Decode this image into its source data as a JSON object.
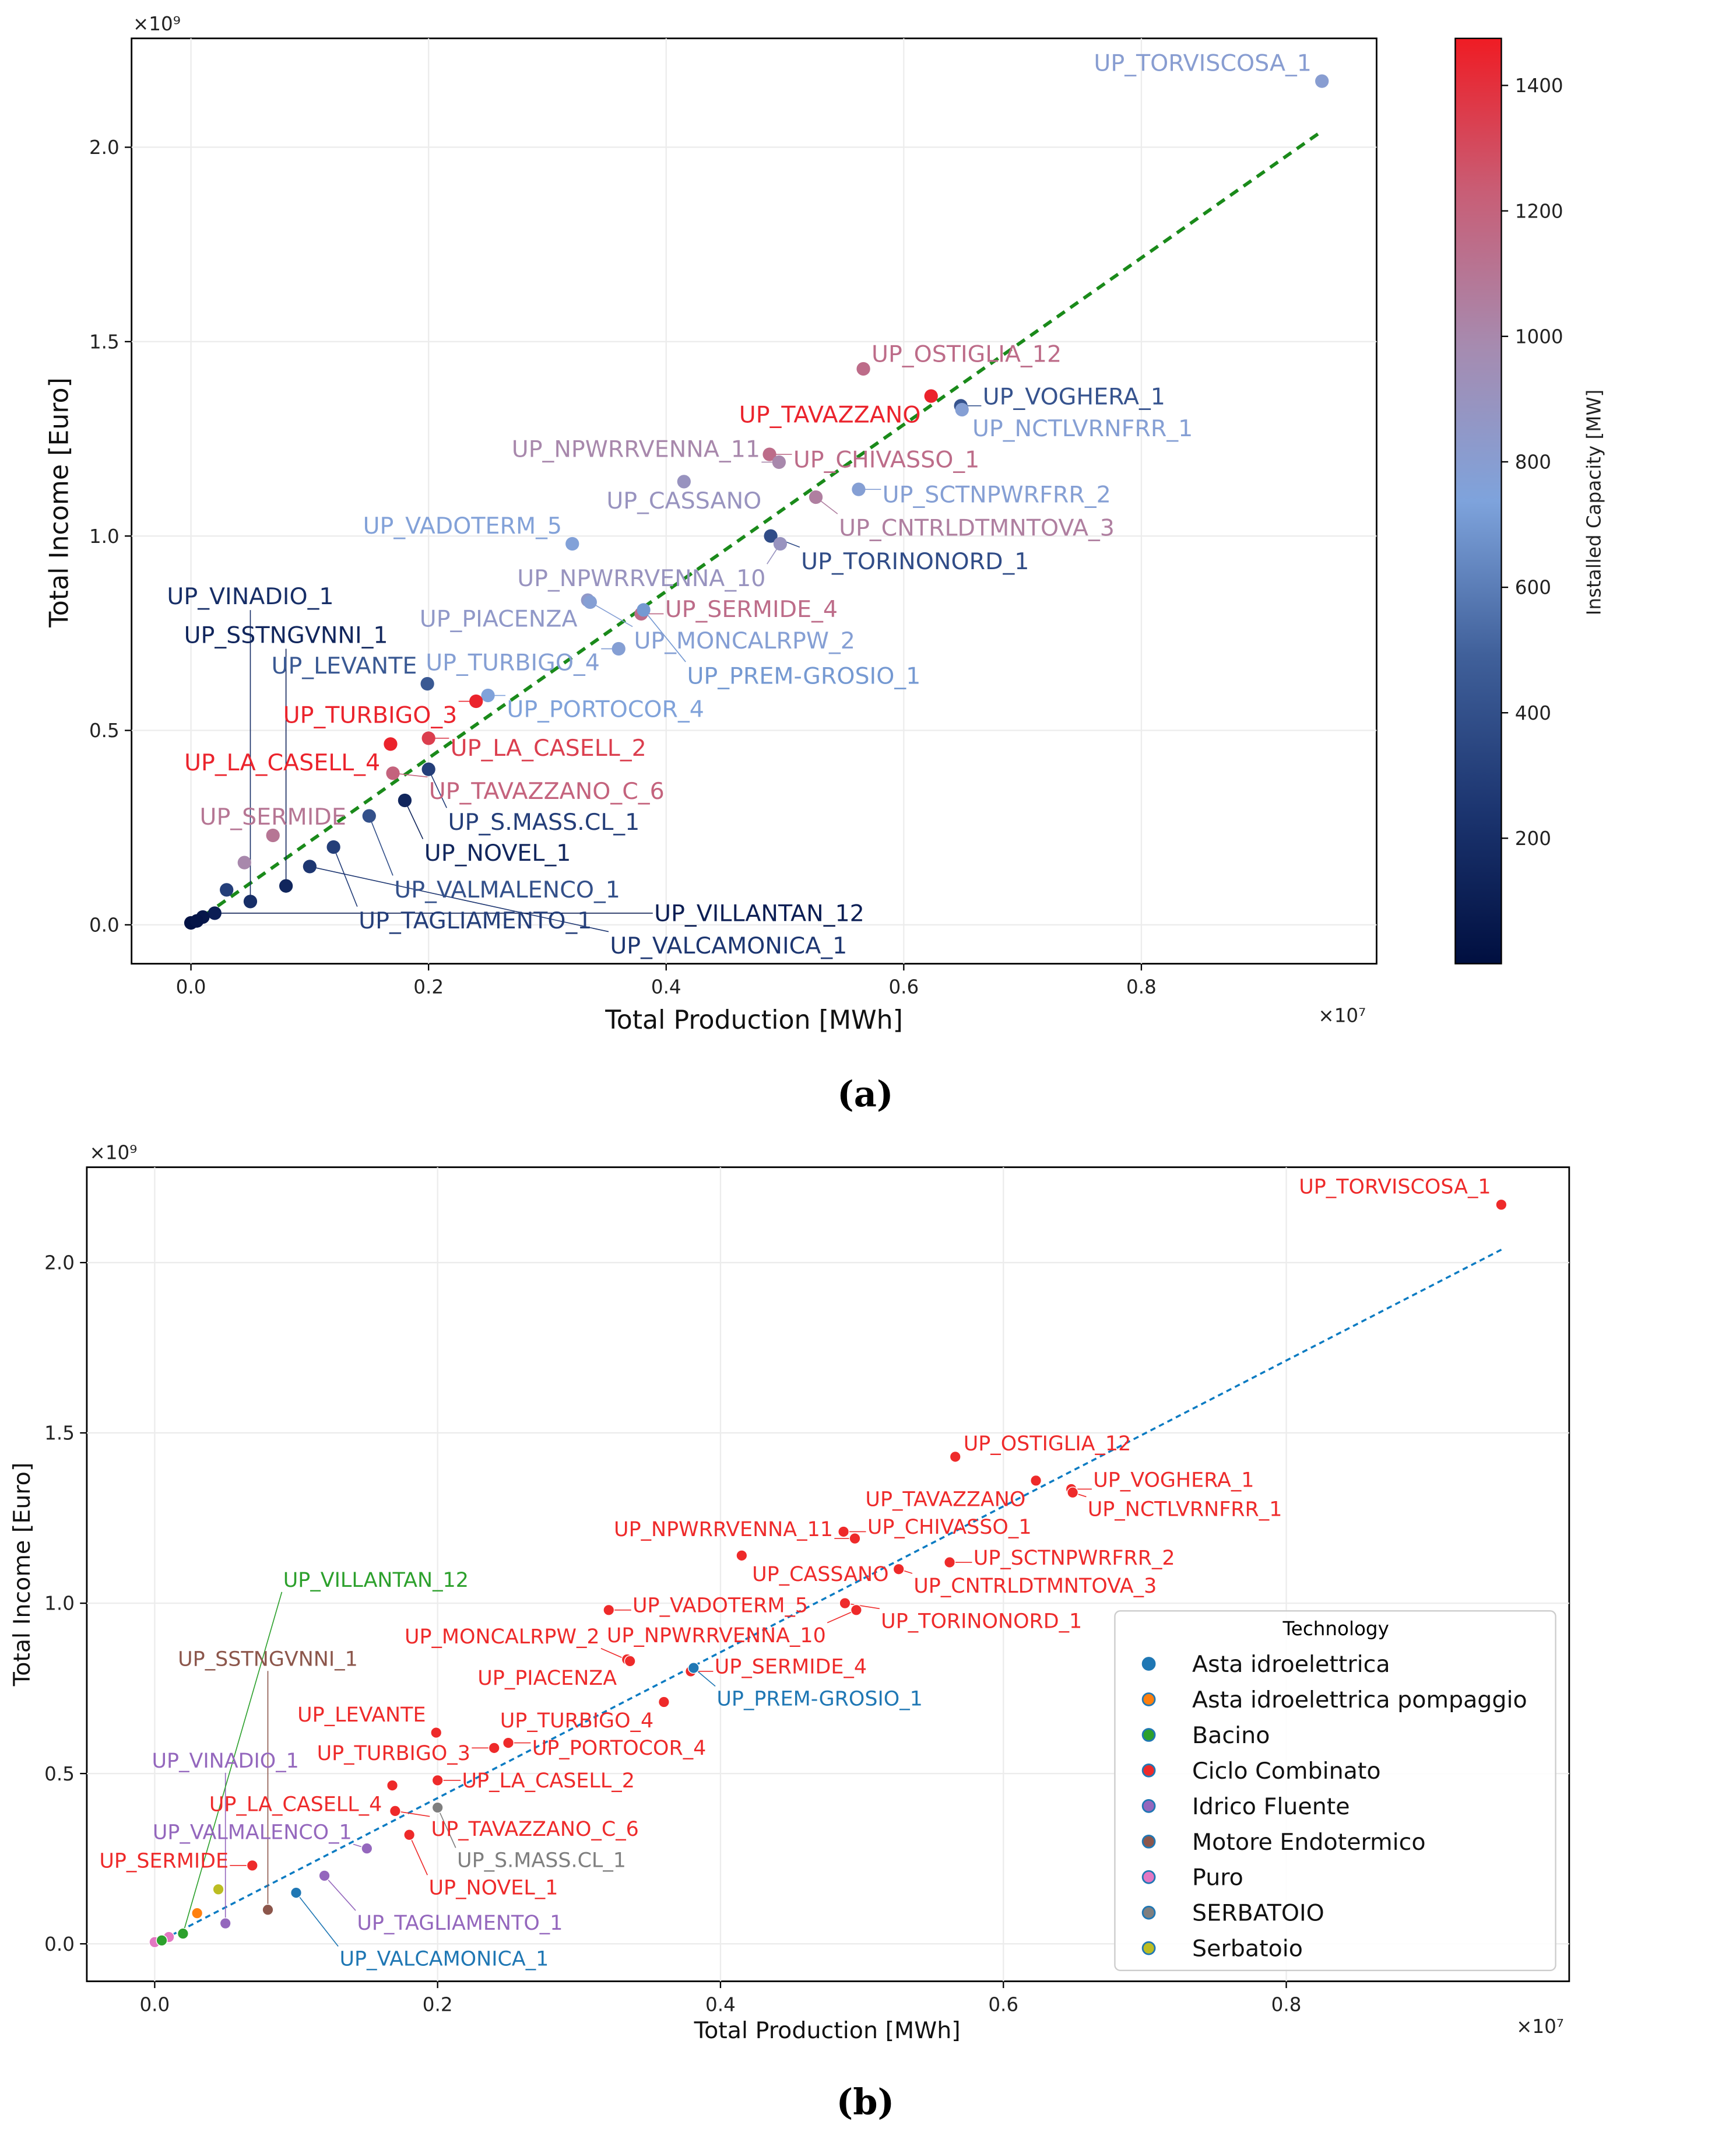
{
  "chart_data": [
    {
      "type": "scatter",
      "panel_caption": "(a)",
      "xlabel": "Total Production [MWh]",
      "ylabel": "Total Income [Euro]",
      "x_multiplier": "×10⁷",
      "y_multiplier": "×10⁹",
      "xlim": [
        -0.05,
        0.998
      ],
      "ylim": [
        -0.1,
        2.28
      ],
      "xticks": [
        "0.0",
        "0.2",
        "0.4",
        "0.6",
        "0.8"
      ],
      "yticks": [
        "0.0",
        "0.5",
        "1.0",
        "1.5",
        "2.0"
      ],
      "grid": true,
      "trendline": {
        "style": "dashed",
        "color": "#1a8a1a",
        "from": [
          0,
          0
        ],
        "to": [
          0.949,
          2.035
        ]
      },
      "colorbar": {
        "label": "Installed Capacity [MW]",
        "range": [
          0,
          1475
        ],
        "ticks": [
          "200",
          "400",
          "600",
          "800",
          "1000",
          "1200",
          "1400"
        ],
        "colors": [
          "#000f40",
          "#1c3570",
          "#40609a",
          "#7ea3dc",
          "#a68bb0",
          "#c85e76",
          "#ef1c24"
        ]
      },
      "color_by": "capacity_mw"
    },
    {
      "type": "scatter",
      "panel_caption": "(b)",
      "xlabel": "Total Production [MWh]",
      "ylabel": "Total Income [Euro]",
      "x_multiplier": "×10⁷",
      "y_multiplier": "×10⁹",
      "xlim": [
        -0.048,
        1.0
      ],
      "ylim": [
        -0.11,
        2.28
      ],
      "xticks": [
        "0.0",
        "0.2",
        "0.4",
        "0.6",
        "0.8"
      ],
      "yticks": [
        "0.0",
        "0.5",
        "1.0",
        "1.5",
        "2.0"
      ],
      "grid": true,
      "trendline": {
        "style": "dashed",
        "color": "#0b7bc2",
        "from": [
          0,
          0
        ],
        "to": [
          0.953,
          2.04
        ]
      },
      "legend": {
        "title": "Technology",
        "placement": "lower-right",
        "items": [
          {
            "label": "Asta idroelettrica",
            "color": "#1f77b4"
          },
          {
            "label": "Asta idroelettrica pompaggio",
            "color": "#ff7f0e"
          },
          {
            "label": "Bacino",
            "color": "#2ca02c"
          },
          {
            "label": "Ciclo Combinato",
            "color": "#ee2a2a"
          },
          {
            "label": "Idrico Fluente",
            "color": "#9467bd"
          },
          {
            "label": "Motore Endotermico",
            "color": "#8c564b"
          },
          {
            "label": "Puro",
            "color": "#e377c2"
          },
          {
            "label": "SERBATOIO",
            "color": "#7f7f7f"
          },
          {
            "label": "Serbatoio",
            "color": "#bcbd22"
          }
        ]
      },
      "color_by": "technology"
    }
  ],
  "points": [
    {
      "label": "UP_TORVISCOSA_1",
      "x": 0.952,
      "y": 2.17,
      "capacity_mw": 800,
      "tech": "Ciclo Combinato"
    },
    {
      "label": "UP_OSTIGLIA_12",
      "x": 0.566,
      "y": 1.43,
      "capacity_mw": 1150,
      "tech": "Ciclo Combinato"
    },
    {
      "label": "UP_TAVAZZANO",
      "x": 0.623,
      "y": 1.36,
      "capacity_mw": 1450,
      "tech": "Ciclo Combinato"
    },
    {
      "label": "UP_VOGHERA_1",
      "x": 0.648,
      "y": 1.335,
      "capacity_mw": 420,
      "tech": "Ciclo Combinato"
    },
    {
      "label": "UP_NCTLVRNFRR_1",
      "x": 0.649,
      "y": 1.325,
      "capacity_mw": 780,
      "tech": "Ciclo Combinato"
    },
    {
      "label": "UP_CHIVASSO_1",
      "x": 0.487,
      "y": 1.21,
      "capacity_mw": 1150,
      "tech": "Ciclo Combinato"
    },
    {
      "label": "UP_NPWRRVENNA_11",
      "x": 0.495,
      "y": 1.19,
      "capacity_mw": 1000,
      "tech": "Ciclo Combinato"
    },
    {
      "label": "UP_CASSANO",
      "x": 0.415,
      "y": 1.14,
      "capacity_mw": 900,
      "tech": "Ciclo Combinato"
    },
    {
      "label": "UP_SCTNPWRFRR_2",
      "x": 0.562,
      "y": 1.12,
      "capacity_mw": 780,
      "tech": "Ciclo Combinato"
    },
    {
      "label": "UP_CNTRLDTMNTOVA_3",
      "x": 0.526,
      "y": 1.1,
      "capacity_mw": 1050,
      "tech": "Ciclo Combinato"
    },
    {
      "label": "UP_VADOTERM_5",
      "x": 0.321,
      "y": 0.98,
      "capacity_mw": 760,
      "tech": "Ciclo Combinato"
    },
    {
      "label": "UP_TORINONORD_1",
      "x": 0.488,
      "y": 1.0,
      "capacity_mw": 380,
      "tech": "Ciclo Combinato"
    },
    {
      "label": "UP_NPWRRVENNA_10",
      "x": 0.496,
      "y": 0.98,
      "capacity_mw": 900,
      "tech": "Ciclo Combinato"
    },
    {
      "label": "UP_PIACENZA",
      "x": 0.334,
      "y": 0.835,
      "capacity_mw": 850,
      "tech": "Ciclo Combinato"
    },
    {
      "label": "UP_MONCALRPW_2",
      "x": 0.336,
      "y": 0.83,
      "capacity_mw": 780,
      "tech": "Ciclo Combinato"
    },
    {
      "label": "UP_SERMIDE_4",
      "x": 0.379,
      "y": 0.8,
      "capacity_mw": 1150,
      "tech": "Ciclo Combinato"
    },
    {
      "label": "UP_PREM-GROSIO_1",
      "x": 0.381,
      "y": 0.81,
      "capacity_mw": 700,
      "tech": "Asta idroelettrica"
    },
    {
      "label": "UP_TURBIGO_4",
      "x": 0.36,
      "y": 0.71,
      "capacity_mw": 780,
      "tech": "Ciclo Combinato"
    },
    {
      "label": "UP_LEVANTE",
      "x": 0.199,
      "y": 0.62,
      "capacity_mw": 450,
      "tech": "Ciclo Combinato"
    },
    {
      "label": "UP_PORTOCOR_4",
      "x": 0.25,
      "y": 0.59,
      "capacity_mw": 750,
      "tech": "Ciclo Combinato"
    },
    {
      "label": "UP_TURBIGO_3",
      "x": 0.24,
      "y": 0.575,
      "capacity_mw": 1450,
      "tech": "Ciclo Combinato"
    },
    {
      "label": "UP_LA_CASELL_4",
      "x": 0.168,
      "y": 0.465,
      "capacity_mw": 1450,
      "tech": "Ciclo Combinato"
    },
    {
      "label": "UP_LA_CASELL_2",
      "x": 0.2,
      "y": 0.48,
      "capacity_mw": 1350,
      "tech": "Ciclo Combinato"
    },
    {
      "label": "UP_TAVAZZANO_C_6",
      "x": 0.17,
      "y": 0.39,
      "capacity_mw": 1200,
      "tech": "Ciclo Combinato"
    },
    {
      "label": "UP_S.MASS.CL_1",
      "x": 0.2,
      "y": 0.4,
      "capacity_mw": 300,
      "tech": "SERBATOIO"
    },
    {
      "label": "UP_NOVEL_1",
      "x": 0.18,
      "y": 0.32,
      "capacity_mw": 150,
      "tech": "Ciclo Combinato"
    },
    {
      "label": "UP_VALMALENCO_1",
      "x": 0.15,
      "y": 0.28,
      "capacity_mw": 400,
      "tech": "Idrico Fluente"
    },
    {
      "label": "UP_SERMIDE",
      "x": 0.069,
      "y": 0.23,
      "capacity_mw": 1100,
      "tech": "Ciclo Combinato"
    },
    {
      "label": "UP_TAGLIAMENTO_1",
      "x": 0.12,
      "y": 0.2,
      "capacity_mw": 300,
      "tech": "Idrico Fluente"
    },
    {
      "label": "UP_VALCAMONICA_1",
      "x": 0.1,
      "y": 0.15,
      "capacity_mw": 250,
      "tech": "Asta idroelettrica"
    },
    {
      "label": "UP_SSTNGVNNI_1",
      "x": 0.08,
      "y": 0.1,
      "capacity_mw": 150,
      "tech": "Motore Endotermico"
    },
    {
      "label": "UP_VINADIO_1",
      "x": 0.05,
      "y": 0.06,
      "capacity_mw": 200,
      "tech": "Idrico Fluente"
    },
    {
      "label": "UP_VILLANTAN_12",
      "x": 0.02,
      "y": 0.03,
      "capacity_mw": 100,
      "tech": "Bacino"
    },
    {
      "label": "",
      "x": 0.045,
      "y": 0.16,
      "capacity_mw": 1000,
      "tech": "Serbatoio"
    },
    {
      "label": "",
      "x": 0.03,
      "y": 0.09,
      "capacity_mw": 300,
      "tech": "Asta idroelettrica pompaggio"
    },
    {
      "label": "",
      "x": 0.01,
      "y": 0.02,
      "capacity_mw": 50,
      "tech": "Puro"
    },
    {
      "label": "",
      "x": 0.0,
      "y": 0.005,
      "capacity_mw": 20,
      "tech": "Puro"
    },
    {
      "label": "",
      "x": 0.005,
      "y": 0.01,
      "capacity_mw": 40,
      "tech": "Bacino"
    }
  ]
}
